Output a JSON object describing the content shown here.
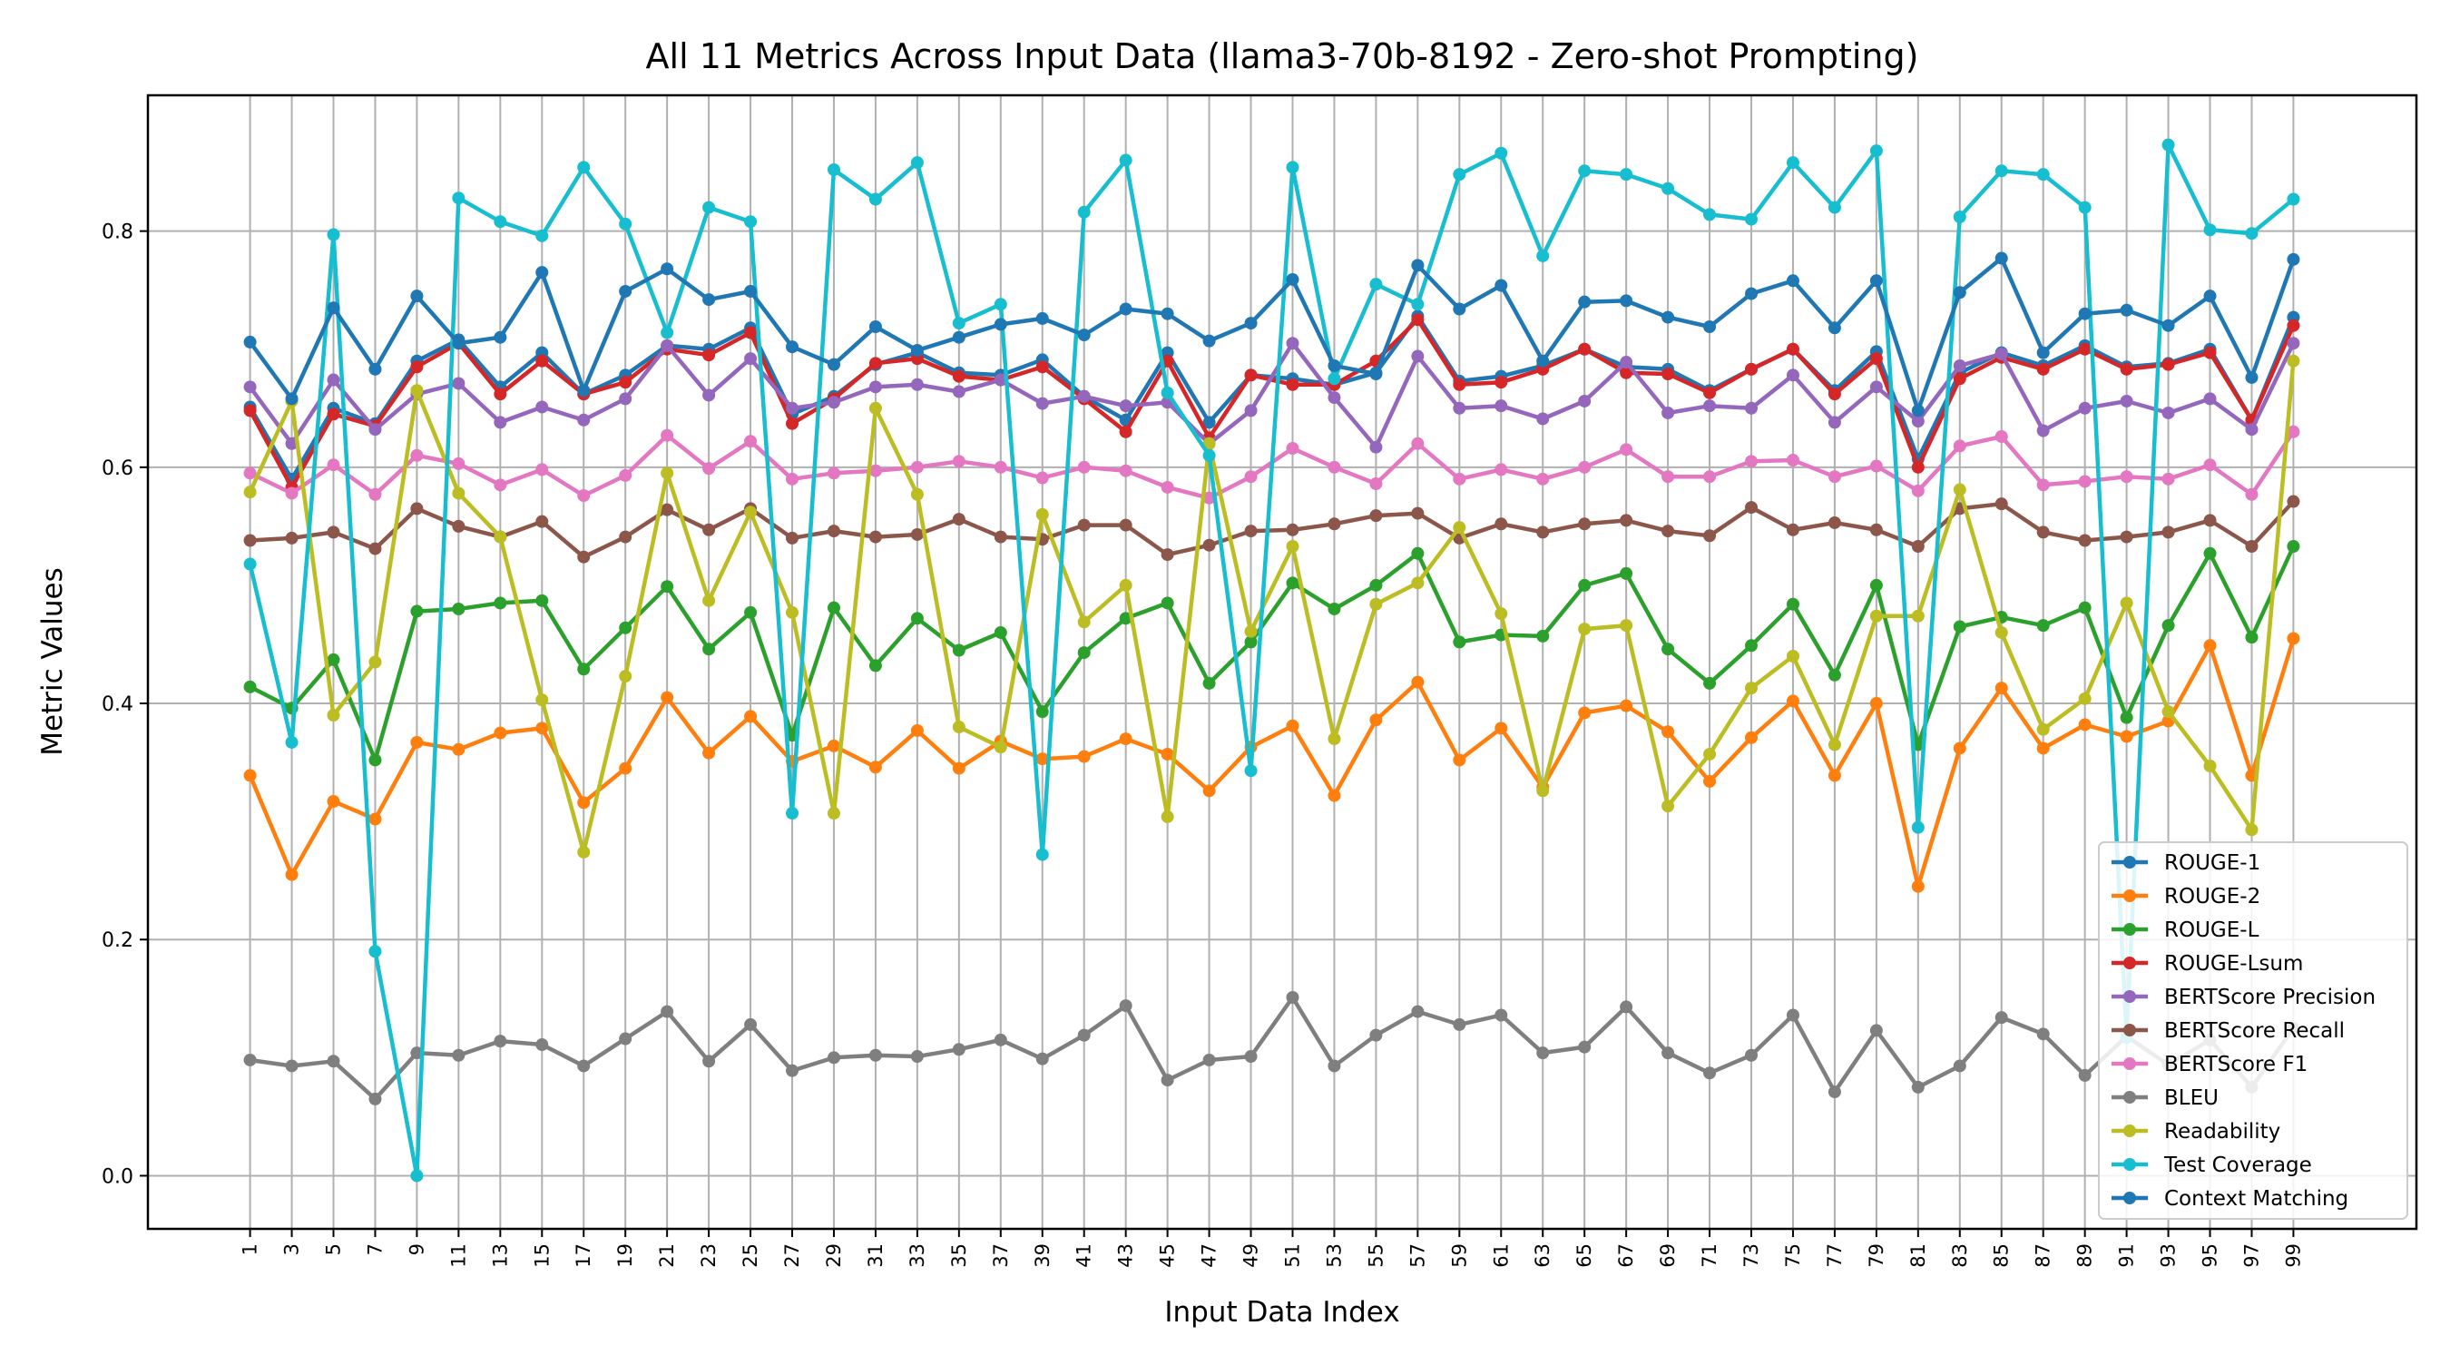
{
  "chart_data": {
    "type": "line",
    "title": "All 11 Metrics Across Input Data (llama3-70b-8192 - Zero-shot Prompting)",
    "xlabel": "Input Data Index",
    "ylabel": "Metric Values",
    "ylim": [
      -0.045,
      0.915
    ],
    "xlim": [
      -3.9,
      104.9
    ],
    "yticks": [
      0.0,
      0.2,
      0.4,
      0.6,
      0.8
    ],
    "ytick_labels": [
      "0.0",
      "0.2",
      "0.4",
      "0.6",
      "0.8"
    ],
    "grid": true,
    "legend_position": "lower-right",
    "x": [
      1,
      3,
      5,
      7,
      9,
      11,
      13,
      15,
      17,
      19,
      21,
      23,
      25,
      27,
      29,
      31,
      33,
      35,
      37,
      39,
      41,
      43,
      45,
      47,
      49,
      51,
      53,
      55,
      57,
      59,
      61,
      63,
      65,
      67,
      69,
      71,
      73,
      75,
      77,
      79,
      81,
      83,
      85,
      87,
      89,
      91,
      93,
      95,
      97,
      99
    ],
    "xtick_labels": [
      "1",
      "3",
      "5",
      "7",
      "9",
      "11",
      "13",
      "15",
      "17",
      "19",
      "21",
      "23",
      "25",
      "27",
      "29",
      "31",
      "33",
      "35",
      "37",
      "39",
      "41",
      "43",
      "45",
      "47",
      "49",
      "51",
      "53",
      "55",
      "57",
      "59",
      "61",
      "63",
      "65",
      "67",
      "69",
      "71",
      "73",
      "75",
      "77",
      "79",
      "81",
      "83",
      "85",
      "87",
      "89",
      "91",
      "93",
      "95",
      "97",
      "99"
    ],
    "series": [
      {
        "name": "ROUGE-1",
        "color": "#1f77b4",
        "values": [
          0.651,
          0.59,
          0.65,
          0.637,
          0.69,
          0.708,
          0.668,
          0.697,
          0.662,
          0.678,
          0.703,
          0.7,
          0.718,
          0.645,
          0.66,
          0.687,
          0.697,
          0.68,
          0.678,
          0.691,
          0.66,
          0.64,
          0.697,
          0.638,
          0.678,
          0.675,
          0.67,
          0.68,
          0.728,
          0.673,
          0.677,
          0.686,
          0.7,
          0.685,
          0.683,
          0.665,
          0.683,
          0.7,
          0.665,
          0.698,
          0.607,
          0.68,
          0.697,
          0.686,
          0.703,
          0.685,
          0.688,
          0.7,
          0.64,
          0.727
        ]
      },
      {
        "name": "ROUGE-2",
        "color": "#ff7f0e",
        "values": [
          0.339,
          0.255,
          0.317,
          0.302,
          0.367,
          0.361,
          0.375,
          0.379,
          0.316,
          0.345,
          0.405,
          0.358,
          0.389,
          0.351,
          0.364,
          0.346,
          0.377,
          0.345,
          0.368,
          0.353,
          0.355,
          0.37,
          0.357,
          0.326,
          0.363,
          0.381,
          0.322,
          0.386,
          0.418,
          0.352,
          0.379,
          0.329,
          0.392,
          0.398,
          0.376,
          0.334,
          0.371,
          0.402,
          0.339,
          0.4,
          0.245,
          0.362,
          0.413,
          0.362,
          0.382,
          0.372,
          0.385,
          0.449,
          0.339,
          0.455
        ]
      },
      {
        "name": "ROUGE-L",
        "color": "#2ca02c",
        "values": [
          0.414,
          0.396,
          0.437,
          0.352,
          0.478,
          0.48,
          0.485,
          0.487,
          0.429,
          0.464,
          0.499,
          0.446,
          0.477,
          0.373,
          0.481,
          0.432,
          0.472,
          0.445,
          0.46,
          0.393,
          0.443,
          0.472,
          0.485,
          0.417,
          0.452,
          0.502,
          0.48,
          0.5,
          0.527,
          0.452,
          0.458,
          0.457,
          0.5,
          0.51,
          0.446,
          0.417,
          0.449,
          0.484,
          0.424,
          0.5,
          0.365,
          0.465,
          0.473,
          0.466,
          0.481,
          0.388,
          0.466,
          0.527,
          0.456,
          0.533
        ]
      },
      {
        "name": "ROUGE-Lsum",
        "color": "#d62728",
        "values": [
          0.648,
          0.583,
          0.645,
          0.635,
          0.685,
          0.705,
          0.662,
          0.69,
          0.662,
          0.672,
          0.7,
          0.695,
          0.714,
          0.637,
          0.658,
          0.688,
          0.692,
          0.677,
          0.674,
          0.685,
          0.658,
          0.63,
          0.69,
          0.625,
          0.678,
          0.67,
          0.67,
          0.69,
          0.725,
          0.67,
          0.672,
          0.683,
          0.7,
          0.68,
          0.679,
          0.663,
          0.683,
          0.7,
          0.662,
          0.692,
          0.6,
          0.675,
          0.693,
          0.683,
          0.7,
          0.683,
          0.687,
          0.697,
          0.64,
          0.72
        ]
      },
      {
        "name": "BERTScore Precision",
        "color": "#9467bd",
        "values": [
          0.668,
          0.62,
          0.674,
          0.632,
          0.662,
          0.671,
          0.638,
          0.651,
          0.64,
          0.658,
          0.703,
          0.661,
          0.692,
          0.65,
          0.655,
          0.668,
          0.67,
          0.664,
          0.674,
          0.654,
          0.66,
          0.652,
          0.655,
          0.62,
          0.648,
          0.705,
          0.659,
          0.617,
          0.694,
          0.65,
          0.652,
          0.641,
          0.656,
          0.689,
          0.646,
          0.652,
          0.65,
          0.678,
          0.638,
          0.668,
          0.639,
          0.686,
          0.696,
          0.631,
          0.65,
          0.656,
          0.646,
          0.658,
          0.632,
          0.705
        ]
      },
      {
        "name": "BERTScore Recall",
        "color": "#8c564b",
        "values": [
          0.538,
          0.54,
          0.545,
          0.531,
          0.565,
          0.55,
          0.541,
          0.554,
          0.524,
          0.541,
          0.564,
          0.547,
          0.565,
          0.54,
          0.546,
          0.541,
          0.543,
          0.556,
          0.541,
          0.539,
          0.551,
          0.551,
          0.526,
          0.534,
          0.546,
          0.547,
          0.552,
          0.559,
          0.561,
          0.54,
          0.552,
          0.545,
          0.552,
          0.555,
          0.546,
          0.542,
          0.566,
          0.547,
          0.553,
          0.547,
          0.533,
          0.565,
          0.569,
          0.545,
          0.538,
          0.541,
          0.545,
          0.555,
          0.533,
          0.571
        ]
      },
      {
        "name": "BERTScore F1",
        "color": "#e377c2",
        "values": [
          0.595,
          0.578,
          0.602,
          0.577,
          0.61,
          0.603,
          0.585,
          0.598,
          0.576,
          0.593,
          0.627,
          0.599,
          0.622,
          0.59,
          0.595,
          0.597,
          0.6,
          0.605,
          0.6,
          0.591,
          0.6,
          0.597,
          0.583,
          0.574,
          0.592,
          0.616,
          0.6,
          0.586,
          0.62,
          0.59,
          0.598,
          0.59,
          0.6,
          0.615,
          0.592,
          0.592,
          0.605,
          0.606,
          0.592,
          0.601,
          0.58,
          0.618,
          0.626,
          0.585,
          0.588,
          0.592,
          0.59,
          0.602,
          0.577,
          0.63
        ]
      },
      {
        "name": "BLEU",
        "color": "#7f7f7f",
        "values": [
          0.098,
          0.093,
          0.097,
          0.065,
          0.104,
          0.102,
          0.114,
          0.111,
          0.093,
          0.116,
          0.139,
          0.097,
          0.128,
          0.089,
          0.1,
          0.102,
          0.101,
          0.107,
          0.115,
          0.099,
          0.119,
          0.144,
          0.081,
          0.098,
          0.101,
          0.151,
          0.093,
          0.119,
          0.139,
          0.128,
          0.136,
          0.104,
          0.109,
          0.143,
          0.104,
          0.087,
          0.102,
          0.136,
          0.071,
          0.123,
          0.075,
          0.093,
          0.134,
          0.12,
          0.085,
          0.118,
          0.094,
          0.115,
          0.075,
          0.125
        ]
      },
      {
        "name": "Readability",
        "color": "#bcbd22",
        "values": [
          0.579,
          0.656,
          0.39,
          0.435,
          0.665,
          0.578,
          0.541,
          0.403,
          0.274,
          0.423,
          0.595,
          0.487,
          0.562,
          0.477,
          0.307,
          0.65,
          0.577,
          0.38,
          0.363,
          0.56,
          0.469,
          0.5,
          0.304,
          0.62,
          0.461,
          0.533,
          0.37,
          0.484,
          0.502,
          0.549,
          0.476,
          0.326,
          0.463,
          0.466,
          0.313,
          0.357,
          0.413,
          0.44,
          0.365,
          0.474,
          0.474,
          0.581,
          0.46,
          0.378,
          0.404,
          0.485,
          0.393,
          0.347,
          0.293,
          0.69
        ]
      },
      {
        "name": "Test Coverage",
        "color": "#17becf",
        "values": [
          0.518,
          0.367,
          0.797,
          0.19,
          0.0,
          0.828,
          0.808,
          0.796,
          0.854,
          0.806,
          0.714,
          0.82,
          0.808,
          0.307,
          0.852,
          0.827,
          0.858,
          0.722,
          0.738,
          0.272,
          0.816,
          0.86,
          0.663,
          0.61,
          0.343,
          0.854,
          0.675,
          0.755,
          0.738,
          0.848,
          0.866,
          0.779,
          0.851,
          0.848,
          0.836,
          0.814,
          0.81,
          0.858,
          0.82,
          0.868,
          0.295,
          0.812,
          0.851,
          0.848,
          0.82,
          0.117,
          0.873,
          0.801,
          0.798,
          0.827
        ]
      },
      {
        "name": "Context Matching",
        "color": "#1f77b4",
        "values": [
          0.706,
          0.658,
          0.735,
          0.683,
          0.745,
          0.705,
          0.71,
          0.765,
          0.665,
          0.749,
          0.768,
          0.742,
          0.749,
          0.702,
          0.687,
          0.719,
          0.699,
          0.71,
          0.721,
          0.726,
          0.712,
          0.734,
          0.73,
          0.707,
          0.722,
          0.759,
          0.686,
          0.679,
          0.771,
          0.734,
          0.754,
          0.69,
          0.74,
          0.741,
          0.727,
          0.719,
          0.747,
          0.758,
          0.718,
          0.758,
          0.648,
          0.748,
          0.777,
          0.697,
          0.73,
          0.733,
          0.72,
          0.745,
          0.676,
          0.776
        ]
      }
    ]
  }
}
